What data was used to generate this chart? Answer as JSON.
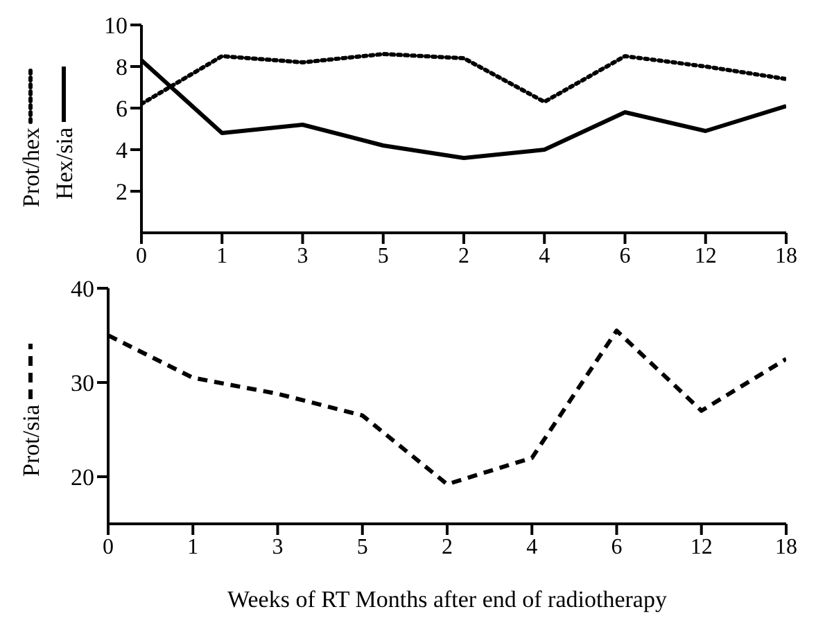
{
  "chart_data": [
    {
      "type": "line",
      "categories": [
        "0",
        "1",
        "3",
        "5",
        "2",
        "4",
        "6",
        "12",
        "18"
      ],
      "series": [
        {
          "name": "Prot/hex",
          "color": "#000000",
          "line_style": "dotted",
          "values": [
            6.2,
            8.5,
            8.2,
            8.6,
            8.4,
            6.3,
            8.5,
            8.0,
            7.4
          ]
        },
        {
          "name": "Hex/sia",
          "color": "#000000",
          "line_style": "solid",
          "values": [
            8.3,
            4.8,
            5.2,
            4.2,
            3.6,
            4.0,
            5.8,
            4.9,
            6.1
          ]
        }
      ],
      "ylim": [
        0,
        10
      ],
      "yticks": [
        2,
        4,
        6,
        8,
        10
      ],
      "legend": "left",
      "grid": false,
      "marker": "none"
    },
    {
      "type": "line",
      "categories": [
        "0",
        "1",
        "3",
        "5",
        "2",
        "4",
        "6",
        "12",
        "18"
      ],
      "series": [
        {
          "name": "Prot/sia",
          "color": "#000000",
          "line_style": "dashed",
          "values": [
            35,
            30.5,
            28.8,
            26.5,
            19.2,
            22,
            35.5,
            27,
            32.5
          ]
        }
      ],
      "ylim": [
        15,
        40
      ],
      "yticks": [
        20,
        30,
        40
      ],
      "legend": "left",
      "grid": false,
      "marker": "none",
      "xlabel": "Weeks of RT      Months after end of radiotherapy"
    }
  ]
}
